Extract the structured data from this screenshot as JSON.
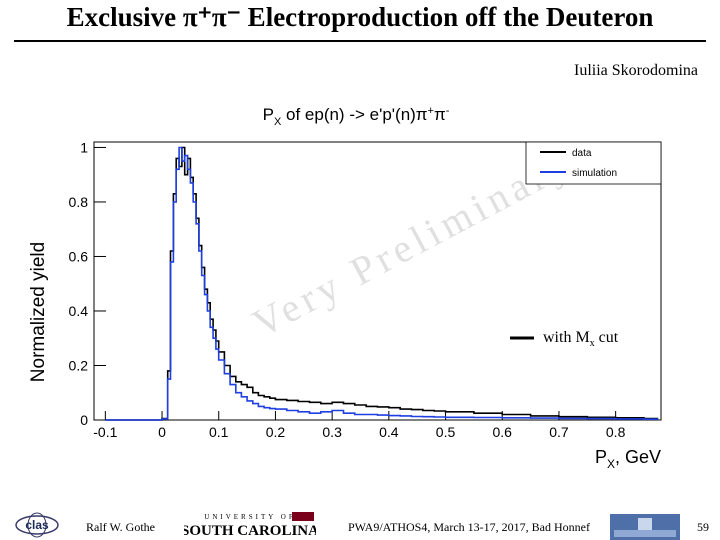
{
  "slide": {
    "title": "Exclusive π⁺π⁻ Electroproduction off the Deuteron",
    "author": "Iuliia Skorodomina"
  },
  "footer": {
    "left": "Ralf W. Gothe",
    "center": "PWA9/ATHOS4, March 13-17, 2017, Bad Honnef",
    "page": "59",
    "clas_logo_text": "clas",
    "usc_top_text": "UNIVERSITY OF",
    "usc_text": "SOUTH CAROLINA"
  },
  "chart_data": {
    "type": "line",
    "title": "P_X of ep(n) -> e'p'(n)π⁺π⁻",
    "xlabel": "P_X, GeV",
    "ylabel": "Normalized yield",
    "xlim": [
      -0.12,
      0.88
    ],
    "ylim": [
      0,
      1.02
    ],
    "x_ticks": [
      -0.1,
      0,
      0.1,
      0.2,
      0.3,
      0.4,
      0.5,
      0.6,
      0.7,
      0.8
    ],
    "x_tick_labels": [
      "-0.1",
      "0",
      "0.1",
      "0.2",
      "0.3",
      "0.4",
      "0.5",
      "0.6",
      "0.7",
      "0.8"
    ],
    "y_ticks": [
      0,
      0.2,
      0.4,
      0.6,
      0.8,
      1
    ],
    "y_tick_labels": [
      "0",
      "0.2",
      "0.4",
      "0.6",
      "0.8",
      "1"
    ],
    "grid": false,
    "legend_position": "top-right",
    "annotation": "with M_x cut",
    "watermark": "Very Preliminary",
    "series": [
      {
        "name": "data",
        "color": "#000000",
        "x": [
          -0.1,
          -0.05,
          0.0,
          0.01,
          0.015,
          0.02,
          0.025,
          0.03,
          0.035,
          0.04,
          0.045,
          0.05,
          0.055,
          0.06,
          0.065,
          0.07,
          0.075,
          0.08,
          0.085,
          0.09,
          0.095,
          0.1,
          0.11,
          0.12,
          0.13,
          0.14,
          0.15,
          0.16,
          0.17,
          0.18,
          0.19,
          0.2,
          0.22,
          0.24,
          0.26,
          0.28,
          0.3,
          0.32,
          0.34,
          0.36,
          0.38,
          0.4,
          0.42,
          0.44,
          0.46,
          0.48,
          0.5,
          0.55,
          0.6,
          0.65,
          0.7,
          0.75,
          0.8,
          0.85
        ],
        "y": [
          0,
          0,
          0.005,
          0.18,
          0.62,
          0.83,
          0.96,
          0.93,
          1.0,
          0.9,
          0.96,
          0.89,
          0.83,
          0.74,
          0.64,
          0.56,
          0.48,
          0.43,
          0.37,
          0.33,
          0.29,
          0.25,
          0.2,
          0.16,
          0.14,
          0.13,
          0.12,
          0.1,
          0.09,
          0.085,
          0.08,
          0.075,
          0.072,
          0.068,
          0.065,
          0.06,
          0.065,
          0.06,
          0.055,
          0.05,
          0.048,
          0.045,
          0.04,
          0.038,
          0.035,
          0.033,
          0.03,
          0.025,
          0.02,
          0.015,
          0.012,
          0.01,
          0.008,
          0.005
        ]
      },
      {
        "name": "simulation",
        "color": "#1f3fe0",
        "x": [
          -0.1,
          -0.05,
          0.0,
          0.01,
          0.015,
          0.02,
          0.025,
          0.03,
          0.035,
          0.04,
          0.045,
          0.05,
          0.055,
          0.06,
          0.065,
          0.07,
          0.075,
          0.08,
          0.085,
          0.09,
          0.095,
          0.1,
          0.11,
          0.12,
          0.13,
          0.14,
          0.15,
          0.16,
          0.17,
          0.18,
          0.19,
          0.2,
          0.22,
          0.24,
          0.26,
          0.28,
          0.3,
          0.32,
          0.34,
          0.36,
          0.38,
          0.4,
          0.42,
          0.44,
          0.46,
          0.48,
          0.5,
          0.55,
          0.6,
          0.65,
          0.7,
          0.75,
          0.8,
          0.85
        ],
        "y": [
          0,
          0,
          0.004,
          0.15,
          0.58,
          0.8,
          0.92,
          1.0,
          0.95,
          0.97,
          0.92,
          0.87,
          0.8,
          0.72,
          0.62,
          0.53,
          0.46,
          0.4,
          0.34,
          0.3,
          0.26,
          0.22,
          0.17,
          0.13,
          0.1,
          0.085,
          0.07,
          0.06,
          0.05,
          0.045,
          0.042,
          0.04,
          0.035,
          0.03,
          0.025,
          0.03,
          0.035,
          0.025,
          0.02,
          0.02,
          0.018,
          0.016,
          0.015,
          0.013,
          0.012,
          0.011,
          0.01,
          0.009,
          0.008,
          0.007,
          0.006,
          0.005,
          0.004,
          0.003
        ]
      }
    ]
  }
}
